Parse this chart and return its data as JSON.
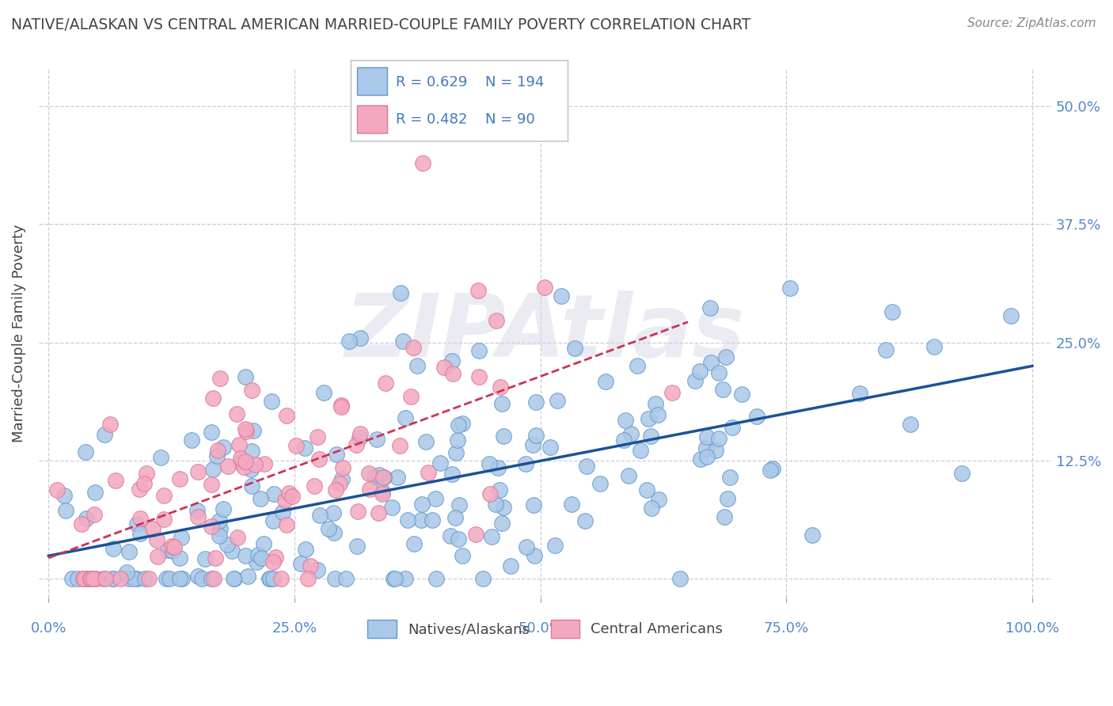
{
  "title": "NATIVE/ALASKAN VS CENTRAL AMERICAN MARRIED-COUPLE FAMILY POVERTY CORRELATION CHART",
  "source": "Source: ZipAtlas.com",
  "ylabel": "Married-Couple Family Poverty",
  "blue_R": 0.629,
  "blue_N": 194,
  "pink_R": 0.482,
  "pink_N": 90,
  "blue_label": "Natives/Alaskans",
  "pink_label": "Central Americans",
  "xlim": [
    -0.01,
    1.02
  ],
  "ylim": [
    -0.02,
    0.54
  ],
  "xticks": [
    0.0,
    0.25,
    0.5,
    0.75,
    1.0
  ],
  "yticks": [
    0.0,
    0.125,
    0.25,
    0.375,
    0.5
  ],
  "xtick_labels": [
    "0.0%",
    "25.0%",
    "50.0%",
    "75.0%",
    "100.0%"
  ],
  "ytick_labels_right": [
    "",
    "12.5%",
    "25.0%",
    "37.5%",
    "50.0%"
  ],
  "grid_color": "#ccccdd",
  "blue_scatter_color": "#aac8e8",
  "blue_scatter_edge": "#6699cc",
  "pink_scatter_color": "#f4a8c0",
  "pink_scatter_edge": "#dd7799",
  "blue_line_color": "#1a5296",
  "pink_line_color": "#cc3355",
  "watermark": "ZIPAtlas",
  "background_color": "#ffffff",
  "title_color": "#444444",
  "axis_tick_color": "#5588cc",
  "legend_color": "#4477bb",
  "blue_intercept": 0.02,
  "blue_slope": 0.21,
  "pink_intercept": 0.04,
  "pink_slope": 0.3
}
